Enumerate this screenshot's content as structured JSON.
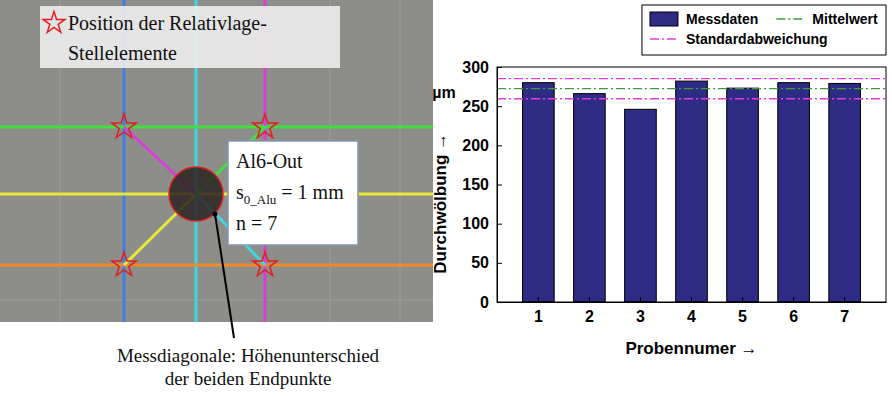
{
  "chart_data": {
    "type": "bar",
    "ylabel": "Durchwölbung →",
    "y_unit": "µm",
    "xlabel": "Probennumer →",
    "categories": [
      "1",
      "2",
      "3",
      "4",
      "5",
      "6",
      "7"
    ],
    "series": [
      {
        "name": "Messdaten",
        "type": "bar",
        "color": "#2e2b84",
        "values": [
          280,
          266,
          246,
          282,
          273,
          280,
          279
        ]
      }
    ],
    "reference_lines": [
      {
        "name": "Mittelwert",
        "color": "#3a9e3a",
        "line_style": "dashdot",
        "values": [
          272.3
        ]
      },
      {
        "name": "Standardabweichung",
        "color": "#e03be0",
        "line_style": "dashdot",
        "values": [
          259.5,
          285.1
        ]
      }
    ],
    "ylim": [
      0,
      300
    ],
    "yticks": [
      0,
      50,
      100,
      150,
      200,
      250,
      300
    ],
    "grid": false,
    "legend": "top"
  },
  "photo_panel": {
    "marker_legend": [
      "Position der Relativlage-",
      "Stellelemente"
    ],
    "info_box": {
      "title": "Al6-Out",
      "thickness": {
        "symbol": "s",
        "subscript": "0_Alu",
        "text": " = 1 mm"
      },
      "count": "n = 7"
    },
    "caption": [
      "Messdiagonale: Höhenunterschied",
      "der beiden Endpunkte"
    ]
  }
}
